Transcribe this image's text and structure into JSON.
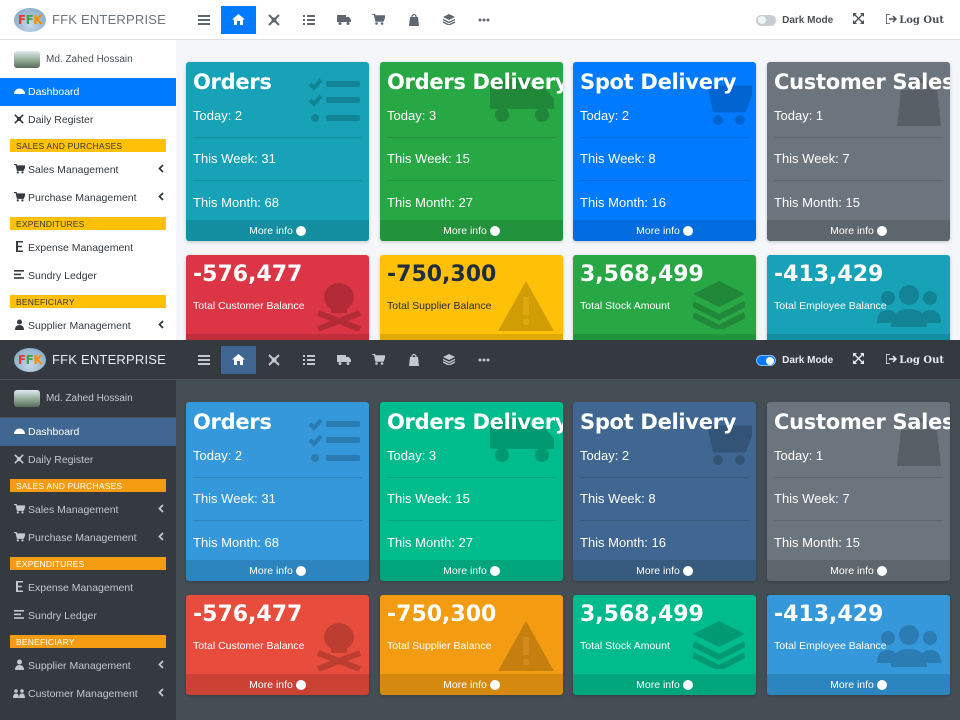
{
  "brand": {
    "logo_text": [
      "F",
      "F",
      "K"
    ],
    "name": "FFK ENTERPRISE"
  },
  "topnav": {
    "icons": [
      "menu-icon",
      "home-icon",
      "register-icon",
      "list-icon",
      "truck-icon",
      "cart-icon",
      "bag-icon",
      "layers-icon",
      "more-icon"
    ],
    "dark_mode_label": "Dark Mode",
    "logout_label": "Log Out"
  },
  "user": {
    "name": "Md. Zahed Hossain"
  },
  "sidebar": {
    "items": [
      {
        "label": "Dashboard",
        "icon": "dashboard-icon"
      },
      {
        "label": "Daily Register",
        "icon": "register-icon"
      },
      {
        "header": "SALES AND PURCHASES"
      },
      {
        "label": "Sales Management",
        "icon": "cart-icon",
        "chevron": true
      },
      {
        "label": "Purchase Management",
        "icon": "cart-icon",
        "chevron": true
      },
      {
        "header": "EXPENDITURES"
      },
      {
        "label": "Expense Management",
        "icon": "expense-icon"
      },
      {
        "label": "Sundry Ledger",
        "icon": "ledger-icon"
      },
      {
        "header": "BENEFICIARY"
      },
      {
        "label": "Supplier Management",
        "icon": "supplier-icon",
        "chevron": true
      },
      {
        "label": "Customer Management",
        "icon": "customer-icon",
        "chevron": true
      }
    ]
  },
  "cards": [
    {
      "title": "Orders",
      "today": "Today: 2",
      "week": "This Week: 31",
      "month": "This Month: 68",
      "more": "More info"
    },
    {
      "title": "Orders Delivery",
      "today": "Today: 3",
      "week": "This Week: 15",
      "month": "This Month: 27",
      "more": "More info"
    },
    {
      "title": "Spot Delivery",
      "today": "Today: 2",
      "week": "This Week: 8",
      "month": "This Month: 16",
      "more": "More info"
    },
    {
      "title": "Customer Sales",
      "today": "Today: 1",
      "week": "This Week: 7",
      "month": "This Month: 15",
      "more": "More info"
    }
  ],
  "balances": [
    {
      "value": "-576,477",
      "label": "Total Customer Balance",
      "more": "More info"
    },
    {
      "value": "-750,300",
      "label": "Total Supplier Balance",
      "more": "More info"
    },
    {
      "value": "3,568,499",
      "label": "Total Stock Amount",
      "more": "More info"
    },
    {
      "value": "-413,429",
      "label": "Total Employee Balance",
      "more": "More info"
    }
  ],
  "themes": {
    "light": {
      "cards": [
        "#17a2b8",
        "#28a745",
        "#007bff",
        "#6c757d"
      ],
      "balances": [
        "#dc3545",
        "#ffc107",
        "#28a745",
        "#17a2b8"
      ]
    },
    "dark": {
      "cards": [
        "#3498db",
        "#00bc8c",
        "#3f6791",
        "#6c757d"
      ],
      "balances": [
        "#e74c3c",
        "#f39c12",
        "#00bc8c",
        "#3498db"
      ]
    }
  }
}
